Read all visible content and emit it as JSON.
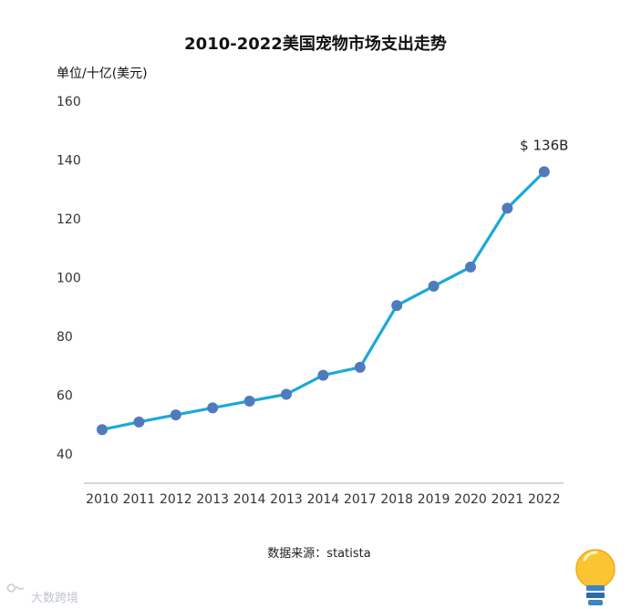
{
  "chart_data": {
    "type": "line",
    "title": "2010-2022美国宠物市场支出走势",
    "ylabel": "单位/十亿(美元)",
    "xlabel": "",
    "categories": [
      "2010",
      "2011",
      "2012",
      "2013",
      "2014",
      "2013",
      "2014",
      "2017",
      "2018",
      "2019",
      "2020",
      "2021",
      "2022"
    ],
    "values": [
      48.3,
      50.9,
      53.3,
      55.7,
      58.0,
      60.3,
      66.8,
      69.5,
      90.5,
      97.1,
      103.6,
      123.6,
      136.0
    ],
    "yticks": [
      "40",
      "60",
      "80",
      "100",
      "120",
      "140",
      "160"
    ],
    "ylim": [
      40,
      160
    ],
    "grid": false,
    "annotation": "$ 136B",
    "line_color": "#1ba8dd",
    "marker_color": "#4f7bbd"
  },
  "source": "数据来源：statista",
  "watermark": "大数跨境"
}
